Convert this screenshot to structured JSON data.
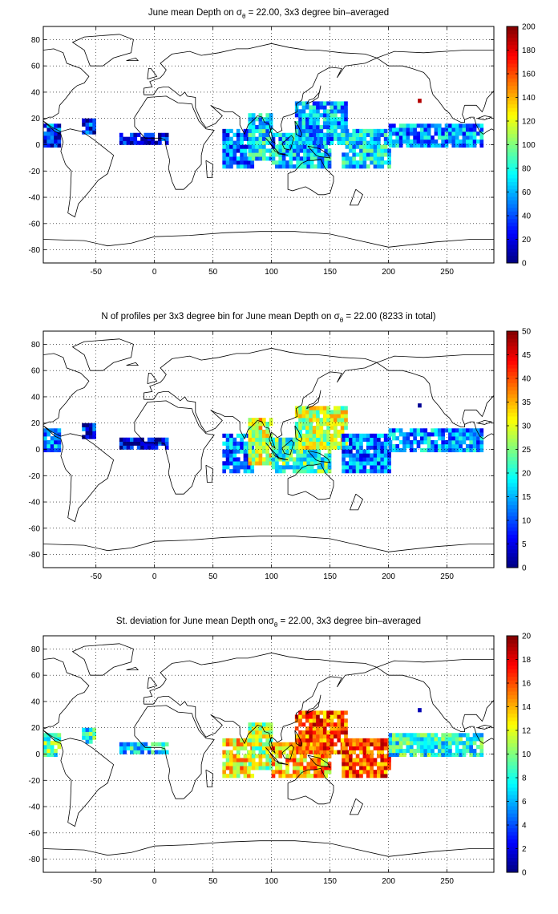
{
  "chart_data": [
    {
      "type": "heatmap",
      "title_prefix": "June mean Depth on ",
      "title_symbol": "σ",
      "title_subscript": "θ",
      "title_suffix": " = 22.00, 3x3 degree bin–averaged",
      "xlim": [
        -95,
        290
      ],
      "ylim": [
        -90,
        90
      ],
      "x_ticks": [
        -50,
        0,
        50,
        100,
        150,
        200,
        250
      ],
      "y_ticks": [
        -80,
        -60,
        -40,
        -20,
        0,
        20,
        40,
        60,
        80
      ],
      "grid": true,
      "colormap": "jet",
      "colorbar_range": [
        0,
        200
      ],
      "colorbar_ticks": [
        0,
        20,
        40,
        60,
        80,
        100,
        120,
        140,
        160,
        180,
        200
      ],
      "regions": [
        {
          "lon": [
            -95,
            -80
          ],
          "lat": [
            -2,
            14
          ],
          "value": 35
        },
        {
          "lon": [
            -62,
            -50
          ],
          "lat": [
            8,
            18
          ],
          "value": 30
        },
        {
          "lon": [
            -30,
            10
          ],
          "lat": [
            0,
            8
          ],
          "value": 20
        },
        {
          "lon": [
            58,
            85
          ],
          "lat": [
            -18,
            12
          ],
          "value": 45
        },
        {
          "lon": [
            80,
            100
          ],
          "lat": [
            -12,
            22
          ],
          "value": 70
        },
        {
          "lon": [
            100,
            150
          ],
          "lat": [
            -18,
            8
          ],
          "value": 65
        },
        {
          "lon": [
            120,
            165
          ],
          "lat": [
            0,
            32
          ],
          "value": 60
        },
        {
          "lon": [
            160,
            200
          ],
          "lat": [
            -18,
            12
          ],
          "value": 70
        },
        {
          "lon": [
            200,
            280
          ],
          "lat": [
            -2,
            16
          ],
          "value": 55
        },
        {
          "lon": [
            225,
            228
          ],
          "lat": [
            32,
            35
          ],
          "value": 190
        }
      ]
    },
    {
      "type": "heatmap",
      "title_prefix": "N of profiles per 3x3 degree bin for June mean Depth on ",
      "title_symbol": "σ",
      "title_subscript": "θ",
      "title_suffix": " = 22.00 (8233 in total)",
      "xlim": [
        -95,
        290
      ],
      "ylim": [
        -90,
        90
      ],
      "x_ticks": [
        -50,
        0,
        50,
        100,
        150,
        200,
        250
      ],
      "y_ticks": [
        -80,
        -60,
        -40,
        -20,
        0,
        20,
        40,
        60,
        80
      ],
      "grid": true,
      "colormap": "jet",
      "colorbar_range": [
        0,
        50
      ],
      "colorbar_ticks": [
        0,
        5,
        10,
        15,
        20,
        25,
        30,
        35,
        40,
        45,
        50
      ],
      "regions": [
        {
          "lon": [
            -95,
            -80
          ],
          "lat": [
            -2,
            14
          ],
          "value": 14
        },
        {
          "lon": [
            -62,
            -50
          ],
          "lat": [
            8,
            18
          ],
          "value": 6
        },
        {
          "lon": [
            -30,
            10
          ],
          "lat": [
            0,
            8
          ],
          "value": 5
        },
        {
          "lon": [
            58,
            85
          ],
          "lat": [
            -18,
            12
          ],
          "value": 12
        },
        {
          "lon": [
            80,
            100
          ],
          "lat": [
            -12,
            22
          ],
          "value": 30
        },
        {
          "lon": [
            100,
            150
          ],
          "lat": [
            -18,
            8
          ],
          "value": 22
        },
        {
          "lon": [
            120,
            165
          ],
          "lat": [
            0,
            32
          ],
          "value": 28
        },
        {
          "lon": [
            160,
            200
          ],
          "lat": [
            -18,
            12
          ],
          "value": 12
        },
        {
          "lon": [
            200,
            280
          ],
          "lat": [
            -2,
            16
          ],
          "value": 14
        },
        {
          "lon": [
            225,
            228
          ],
          "lat": [
            32,
            35
          ],
          "value": 1
        }
      ]
    },
    {
      "type": "heatmap",
      "title_prefix": "St. deviation for June mean Depth on",
      "title_symbol": "σ",
      "title_subscript": "θ",
      "title_suffix": " = 22.00, 3x3 degree bin–averaged",
      "xlim": [
        -95,
        290
      ],
      "ylim": [
        -90,
        90
      ],
      "x_ticks": [
        -50,
        0,
        50,
        100,
        150,
        200,
        250
      ],
      "y_ticks": [
        -80,
        -60,
        -40,
        -20,
        0,
        20,
        40,
        60,
        80
      ],
      "grid": true,
      "colormap": "jet",
      "colorbar_range": [
        0,
        20
      ],
      "colorbar_ticks": [
        0,
        2,
        4,
        6,
        8,
        10,
        12,
        14,
        16,
        18,
        20
      ],
      "regions": [
        {
          "lon": [
            -95,
            -80
          ],
          "lat": [
            -2,
            14
          ],
          "value": 9
        },
        {
          "lon": [
            -62,
            -50
          ],
          "lat": [
            8,
            18
          ],
          "value": 8
        },
        {
          "lon": [
            -30,
            10
          ],
          "lat": [
            0,
            8
          ],
          "value": 7
        },
        {
          "lon": [
            58,
            85
          ],
          "lat": [
            -18,
            12
          ],
          "value": 13
        },
        {
          "lon": [
            80,
            100
          ],
          "lat": [
            -12,
            22
          ],
          "value": 11
        },
        {
          "lon": [
            100,
            150
          ],
          "lat": [
            -18,
            8
          ],
          "value": 14
        },
        {
          "lon": [
            120,
            165
          ],
          "lat": [
            0,
            32
          ],
          "value": 16
        },
        {
          "lon": [
            160,
            200
          ],
          "lat": [
            -18,
            12
          ],
          "value": 16
        },
        {
          "lon": [
            200,
            280
          ],
          "lat": [
            -2,
            16
          ],
          "value": 8
        },
        {
          "lon": [
            225,
            228
          ],
          "lat": [
            32,
            35
          ],
          "value": 1
        }
      ]
    }
  ]
}
